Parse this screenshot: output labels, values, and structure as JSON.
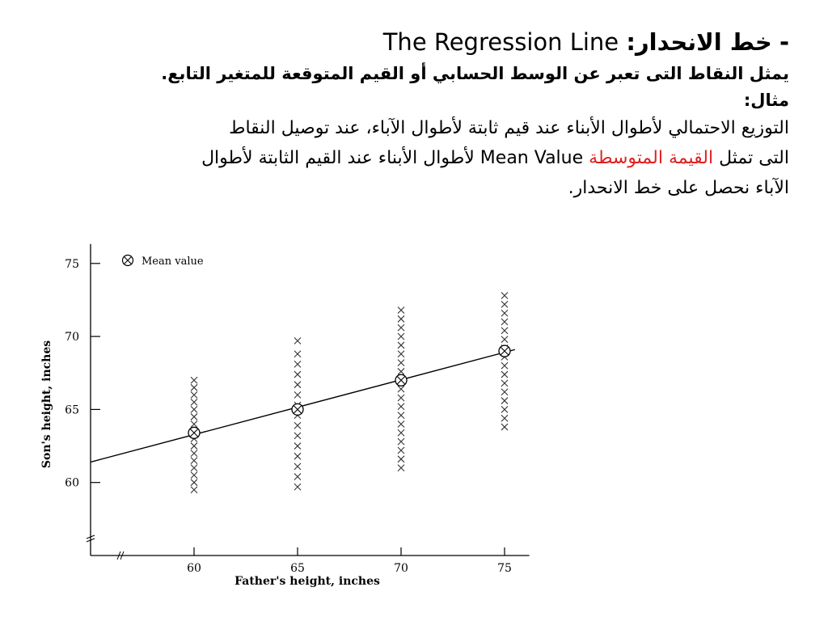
{
  "slide": {
    "title_dash": "-",
    "title_arabic": "خط الانحدار:",
    "title_english": "The Regression Line",
    "definition": "يمثل النقاط التى تعبر عن الوسط الحسابي أو القيم المتوقعة للمتغير التابع.",
    "example_label": "مثال:",
    "body_line1": "التوزيع الاحتمالي لأطوال الأبناء عند قيم ثابتة لأطوال الآباء، عند توصيل النقاط",
    "body_line2_a": "التى تمثل",
    "body_line2_highlight": "القيمة المتوسطة",
    "body_line2_en": "Mean Value",
    "body_line2_b": "لأطوال الأبناء عند القيم الثابتة لأطوال",
    "body_line3": "الآباء نحصل على خط الانحدار.",
    "highlight_color": "#e02020"
  },
  "chart_data": {
    "type": "scatter",
    "xlabel": "Father's height, inches",
    "ylabel": "Son's height, inches",
    "legend": {
      "marker": "circled-x",
      "label": "Mean value",
      "placement": "top-left"
    },
    "x_ticks": [
      60,
      65,
      70,
      75
    ],
    "y_ticks": [
      60,
      65,
      70,
      75
    ],
    "xlim": [
      55,
      76
    ],
    "ylim": [
      55,
      76
    ],
    "axis_breaks": true,
    "series": [
      {
        "x": 60,
        "values": [
          59.5,
          60.0,
          60.5,
          61.0,
          61.5,
          62.0,
          62.5,
          63.0,
          63.5,
          64.0,
          64.5,
          65.0,
          65.5,
          66.0,
          66.5,
          67.0
        ]
      },
      {
        "x": 65,
        "values": [
          59.7,
          60.4,
          61.1,
          61.8,
          62.5,
          63.2,
          63.9,
          64.6,
          65.3,
          66.0,
          66.7,
          67.4,
          68.1,
          68.8,
          69.7
        ]
      },
      {
        "x": 70,
        "values": [
          61.0,
          61.6,
          62.2,
          62.8,
          63.4,
          64.0,
          64.6,
          65.2,
          65.8,
          66.4,
          67.0,
          67.6,
          68.2,
          68.8,
          69.4,
          70.0,
          70.6,
          71.2,
          71.8
        ]
      },
      {
        "x": 75,
        "values": [
          63.8,
          64.4,
          65.0,
          65.6,
          66.2,
          66.8,
          67.4,
          68.0,
          68.6,
          69.2,
          69.8,
          70.4,
          71.0,
          71.6,
          72.2,
          72.8
        ]
      }
    ],
    "means": [
      {
        "x": 60,
        "y": 63.4
      },
      {
        "x": 65,
        "y": 65.0
      },
      {
        "x": 70,
        "y": 67.0
      },
      {
        "x": 75,
        "y": 69.0
      }
    ],
    "regression_line": {
      "x_start": 55,
      "y_start": 61.4,
      "x_end": 75.5,
      "y_end": 69.1
    }
  }
}
